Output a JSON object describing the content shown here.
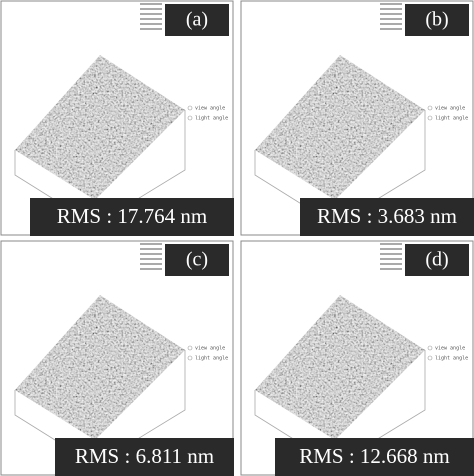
{
  "panels": [
    {
      "label": "(a)",
      "rms": "RMS : 17.764 nm",
      "legend": [
        "view angle",
        "light angle"
      ]
    },
    {
      "label": "(b)",
      "rms": "RMS : 3.683 nm",
      "legend": [
        "view angle",
        "light angle"
      ]
    },
    {
      "label": "(c)",
      "rms": "RMS : 6.811 nm",
      "legend": [
        "view angle",
        "light angle"
      ]
    },
    {
      "label": "(d)",
      "rms": "RMS : 12.668 nm",
      "legend": [
        "view angle",
        "light angle"
      ]
    }
  ]
}
